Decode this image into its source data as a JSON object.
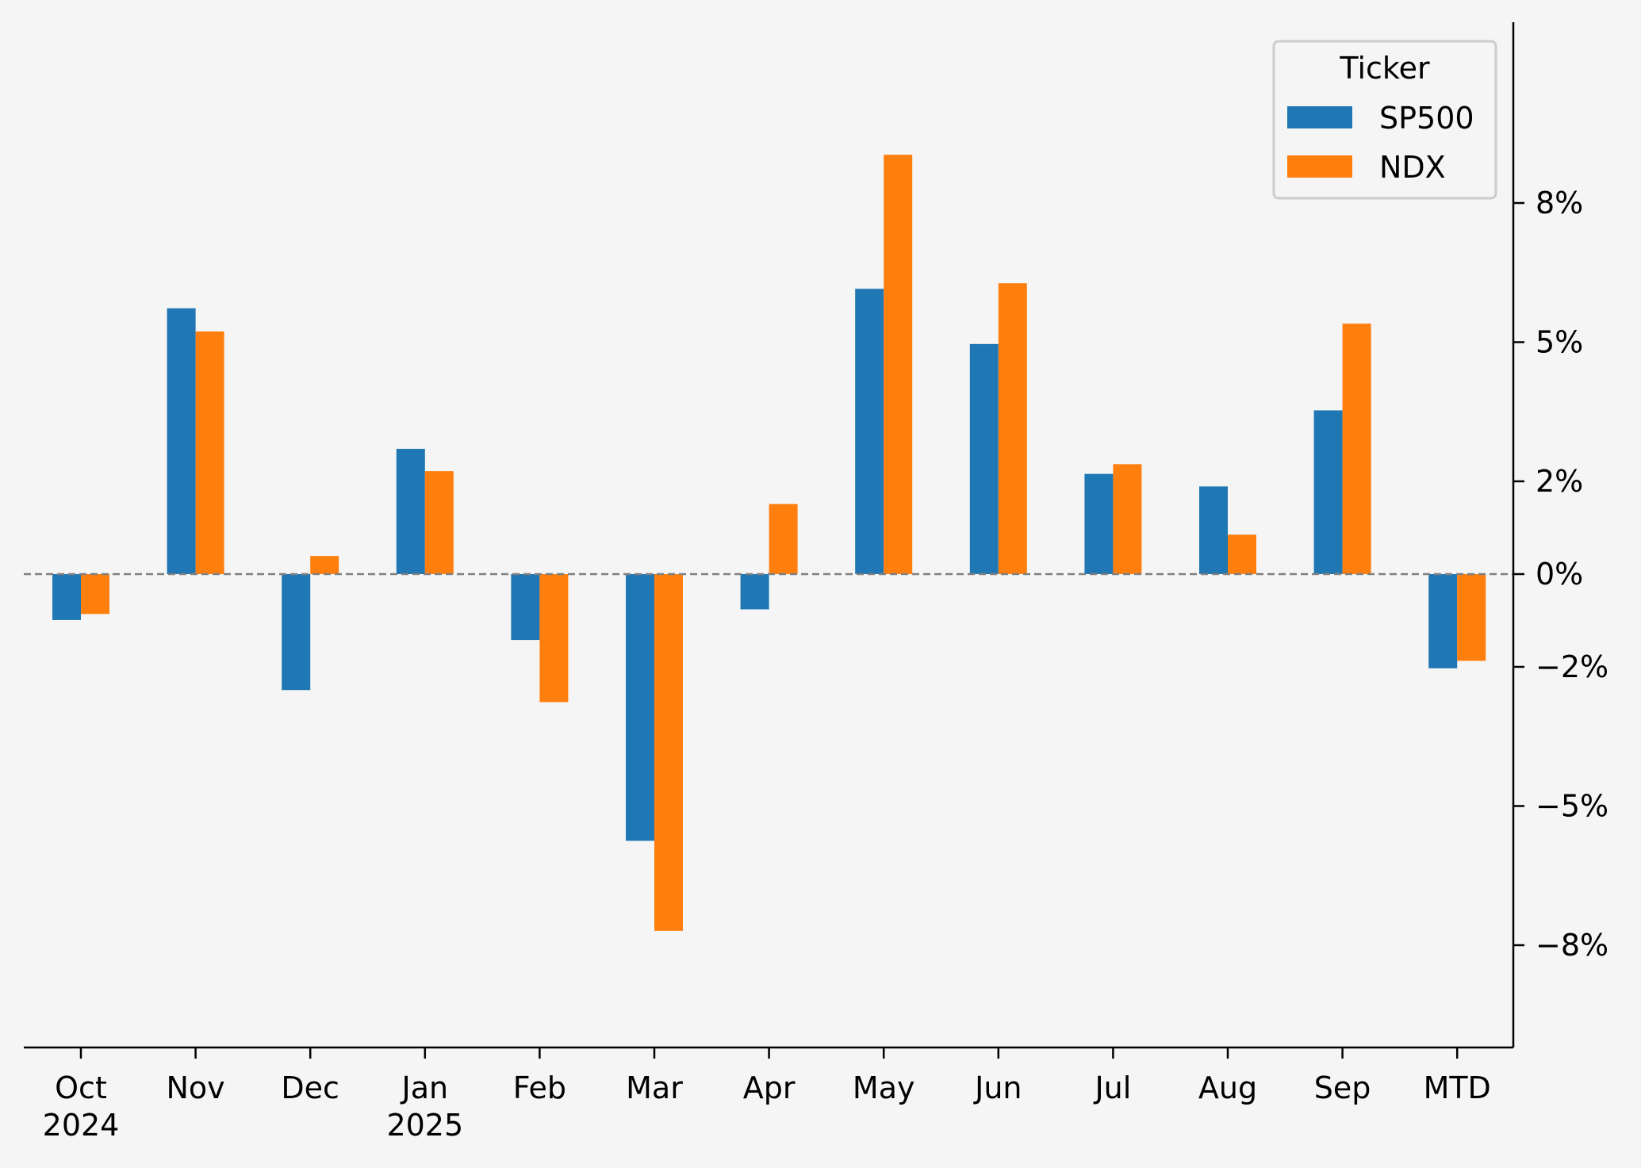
{
  "chart_data": {
    "type": "bar",
    "categories": [
      [
        "Oct",
        "2024"
      ],
      [
        "Nov"
      ],
      [
        "Dec"
      ],
      [
        "Jan",
        "2025"
      ],
      [
        "Feb"
      ],
      [
        "Mar"
      ],
      [
        "Apr"
      ],
      [
        "May"
      ],
      [
        "Jun"
      ],
      [
        "Jul"
      ],
      [
        "Aug"
      ],
      [
        "Sep"
      ],
      [
        "MTD"
      ]
    ],
    "series": [
      {
        "name": "SP500",
        "color": "#1f77b4",
        "values": [
          -0.99,
          5.73,
          -2.5,
          2.7,
          -1.42,
          -5.75,
          -0.76,
          6.15,
          4.96,
          2.16,
          1.89,
          3.53,
          -2.03
        ]
      },
      {
        "name": "NDX",
        "color": "#ff7f0e",
        "values": [
          -0.86,
          5.23,
          0.39,
          2.22,
          -2.76,
          -7.69,
          1.51,
          9.04,
          6.27,
          2.37,
          0.85,
          5.4,
          -1.87
        ]
      }
    ],
    "legend_title": "Ticker",
    "legend_position": "top-right",
    "y_axis_side": "right",
    "y_ticks": [
      8,
      5,
      2,
      0,
      -2,
      -5,
      -8
    ],
    "y_tick_labels": [
      "8%",
      "5%",
      "2%",
      "0%",
      "−2%",
      "−5%",
      "−8%"
    ],
    "ylim": [
      -8.5,
      9.9
    ],
    "zero_line": true,
    "grid": false
  }
}
